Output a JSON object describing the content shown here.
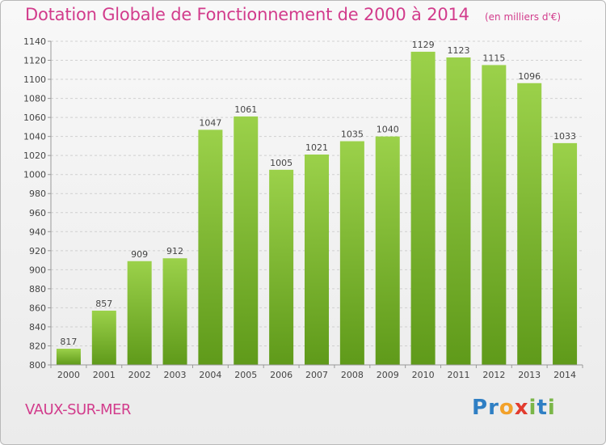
{
  "chart_data": {
    "type": "bar",
    "title": "Dotation Globale de Fonctionnement de 2000 à 2014",
    "unit_note": "(en milliers d'€)",
    "categories": [
      "2000",
      "2001",
      "2002",
      "2003",
      "2004",
      "2005",
      "2006",
      "2007",
      "2008",
      "2009",
      "2010",
      "2011",
      "2012",
      "2013",
      "2014"
    ],
    "values": [
      817,
      857,
      909,
      912,
      1047,
      1061,
      1005,
      1021,
      1035,
      1040,
      1129,
      1123,
      1115,
      1096,
      1033
    ],
    "ylim": [
      800,
      1140
    ],
    "yticks": [
      800,
      820,
      840,
      860,
      880,
      900,
      920,
      940,
      960,
      980,
      1000,
      1020,
      1040,
      1060,
      1080,
      1100,
      1120,
      1140
    ],
    "grid": true,
    "bar_color": "#8cc43c"
  },
  "footer": {
    "commune": "VAUX-SUR-MER",
    "brand_letters": [
      {
        "ch": "P",
        "color": "#2f7fc4"
      },
      {
        "ch": "r",
        "color": "#2f7fc4"
      },
      {
        "ch": "o",
        "color": "#f2a12a"
      },
      {
        "ch": "x",
        "color": "#e23b2e"
      },
      {
        "ch": "i",
        "color": "#7ab648"
      },
      {
        "ch": "t",
        "color": "#2f7fc4"
      },
      {
        "ch": "i",
        "color": "#7ab648"
      }
    ]
  }
}
